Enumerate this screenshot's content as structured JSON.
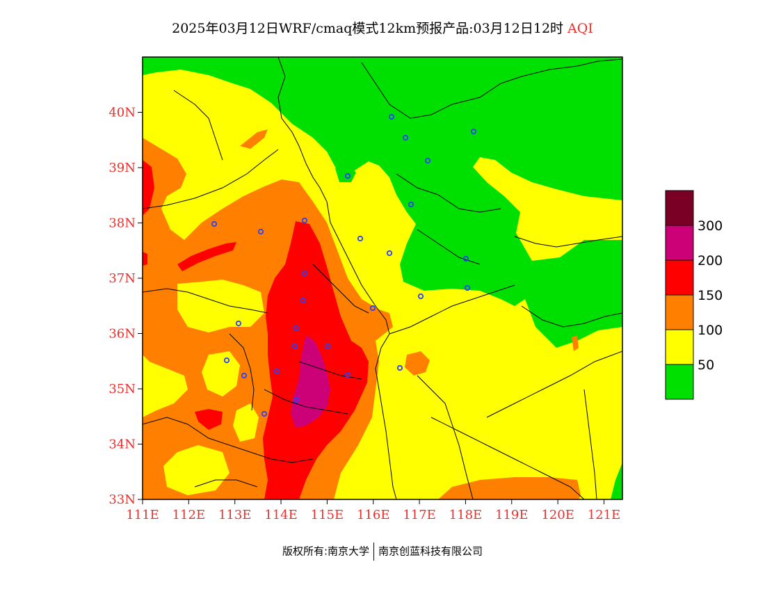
{
  "header": {
    "title": "2025年03月12日WRF/cmaq模式12km预报产品:03月12日12时",
    "product": "AQI"
  },
  "map": {
    "lon_range": [
      111,
      121.4
    ],
    "lat_range": [
      33,
      41
    ],
    "lat_ticks": [
      {
        "value": 33,
        "label": "33N"
      },
      {
        "value": 34,
        "label": "34N"
      },
      {
        "value": 35,
        "label": "35N"
      },
      {
        "value": 36,
        "label": "36N"
      },
      {
        "value": 37,
        "label": "37N"
      },
      {
        "value": 38,
        "label": "38N"
      },
      {
        "value": 39,
        "label": "39N"
      },
      {
        "value": 40,
        "label": "40N"
      }
    ],
    "lon_ticks": [
      {
        "value": 111,
        "label": "111E"
      },
      {
        "value": 112,
        "label": "112E"
      },
      {
        "value": 113,
        "label": "113E"
      },
      {
        "value": 114,
        "label": "114E"
      },
      {
        "value": 115,
        "label": "115E"
      },
      {
        "value": 116,
        "label": "116E"
      },
      {
        "value": 117,
        "label": "117E"
      },
      {
        "value": 118,
        "label": "118E"
      },
      {
        "value": 119,
        "label": "119E"
      },
      {
        "value": 120,
        "label": "120E"
      },
      {
        "value": 121,
        "label": "121E"
      }
    ],
    "colors": {
      "0-50": "#00e000",
      "50-100": "#ffff00",
      "100-150": "#ff8000",
      "150-200": "#ff0000",
      "200-300": "#cc0077",
      "300+": "#7a0025"
    }
  },
  "legend": {
    "levels": [
      {
        "label": "300",
        "color": "#7a0025"
      },
      {
        "label": "200",
        "color": "#cc0077"
      },
      {
        "label": "150",
        "color": "#ff0000"
      },
      {
        "label": "100",
        "color": "#ff8000"
      },
      {
        "label": "50",
        "color": "#ffff00"
      },
      {
        "label": "",
        "color": "#00e000"
      }
    ]
  },
  "footer": {
    "copyright": "版权所有:南京大学",
    "company": "南京创蓝科技有限公司"
  }
}
